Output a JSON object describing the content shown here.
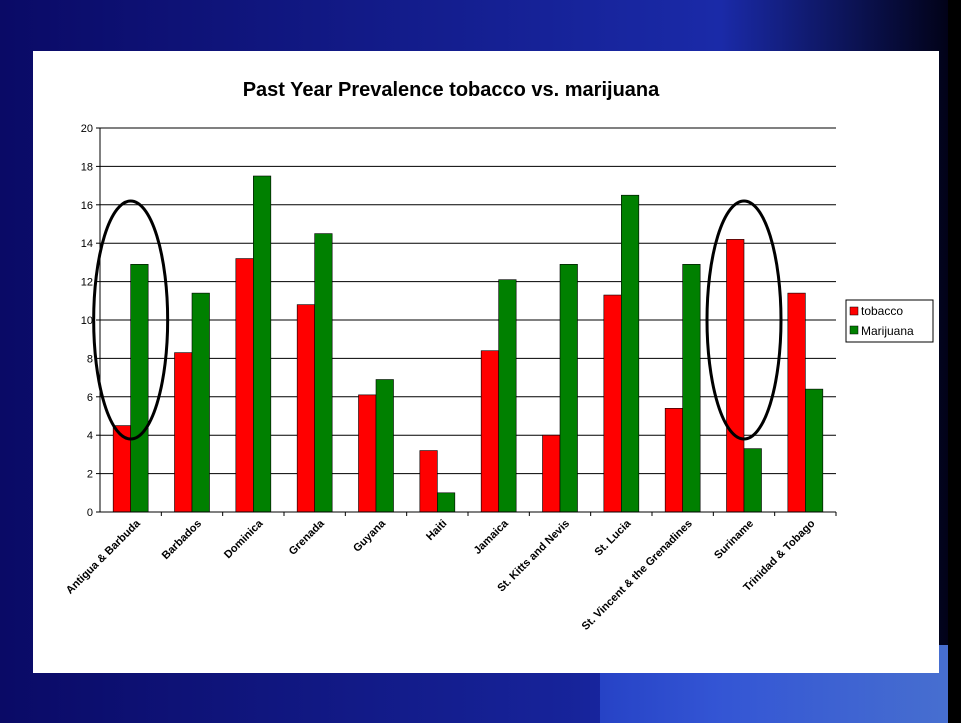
{
  "colors": {
    "slide_background": "#0a0a66",
    "tobacco": "#ff0000",
    "marijuana": "#008000",
    "highlight_ellipse": "#000000"
  },
  "chart_data": {
    "type": "bar",
    "title": "Past Year Prevalence tobacco vs. marijuana",
    "xlabel": "",
    "ylabel": "",
    "ylim": [
      0,
      20
    ],
    "yticks": [
      0,
      2,
      4,
      6,
      8,
      10,
      12,
      14,
      16,
      18,
      20
    ],
    "grid": true,
    "legend_position": "right",
    "categories": [
      "Antigua & Barbuda",
      "Barbados",
      "Dominica",
      "Grenada",
      "Guyana",
      "Haiti",
      "Jamaica",
      "St. Kitts and Nevis",
      "St. Lucia",
      "St. Vincent & the Grenadines",
      "Suriname",
      "Trinidad & Tobago"
    ],
    "series": [
      {
        "name": "tobacco",
        "color": "#ff0000",
        "values": [
          4.5,
          8.3,
          13.2,
          10.8,
          6.1,
          3.2,
          8.4,
          4.0,
          11.3,
          5.4,
          14.2,
          11.4
        ]
      },
      {
        "name": "Marijuana",
        "color": "#008000",
        "values": [
          12.9,
          11.4,
          17.5,
          14.5,
          6.9,
          1.0,
          12.1,
          12.9,
          16.5,
          12.9,
          3.3,
          6.4
        ]
      }
    ],
    "highlighted_categories": [
      "Antigua & Barbuda",
      "Suriname"
    ]
  }
}
